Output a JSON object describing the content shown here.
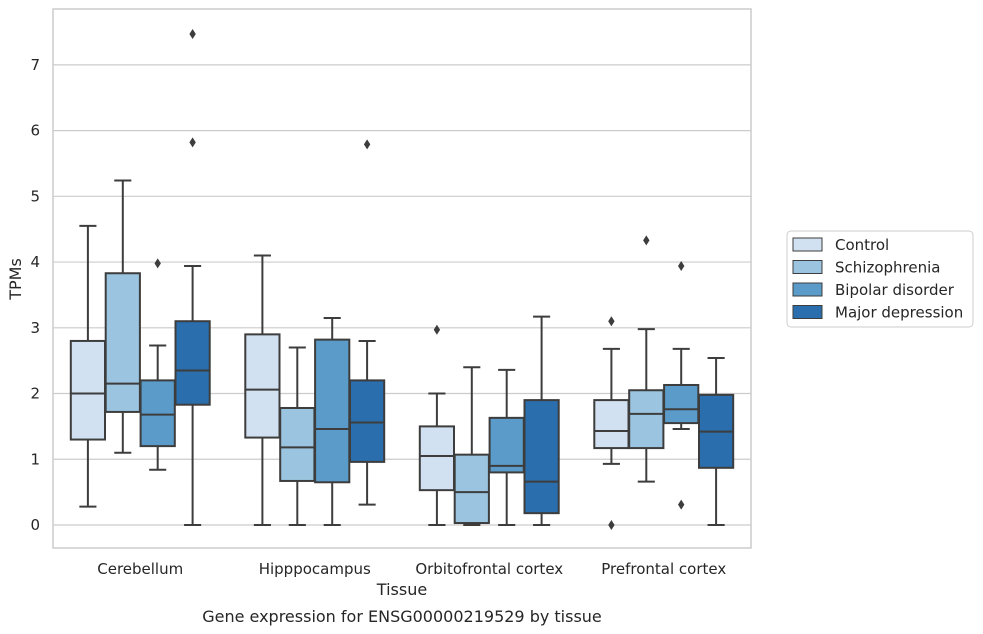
{
  "chart_data": {
    "type": "box",
    "xlabel": "Tissue",
    "ylabel": "TPMs",
    "caption": "Gene expression for ENSG00000219529 by tissue",
    "ylim": [
      -0.35,
      7.85
    ],
    "yticks": [
      0,
      1,
      2,
      3,
      4,
      5,
      6,
      7
    ],
    "grid": "horizontal",
    "legend_position": "right",
    "categories": [
      "Cerebellum",
      "Hipppocampus",
      "Orbitofrontal cortex",
      "Prefrontal cortex"
    ],
    "series": [
      {
        "name": "Control",
        "color": "#d2e1f1",
        "boxes": [
          {
            "whislo": 0.28,
            "q1": 1.3,
            "med": 2.0,
            "q3": 2.8,
            "whishi": 4.55,
            "fliers": []
          },
          {
            "whislo": 0.0,
            "q1": 1.33,
            "med": 2.06,
            "q3": 2.9,
            "whishi": 4.1,
            "fliers": []
          },
          {
            "whislo": 0.0,
            "q1": 0.53,
            "med": 1.05,
            "q3": 1.5,
            "whishi": 2.0,
            "fliers": [
              2.97
            ]
          },
          {
            "whislo": 0.93,
            "q1": 1.17,
            "med": 1.43,
            "q3": 1.9,
            "whishi": 2.68,
            "fliers": [
              3.1,
              0.0
            ]
          }
        ]
      },
      {
        "name": "Schizophrenia",
        "color": "#9ac4df",
        "boxes": [
          {
            "whislo": 1.1,
            "q1": 1.72,
            "med": 2.15,
            "q3": 3.83,
            "whishi": 5.24,
            "fliers": []
          },
          {
            "whislo": 0.0,
            "q1": 0.67,
            "med": 1.18,
            "q3": 1.78,
            "whishi": 2.7,
            "fliers": []
          },
          {
            "whislo": 0.0,
            "q1": 0.03,
            "med": 0.5,
            "q3": 1.07,
            "whishi": 2.4,
            "fliers": []
          },
          {
            "whislo": 0.66,
            "q1": 1.17,
            "med": 1.69,
            "q3": 2.05,
            "whishi": 2.98,
            "fliers": [
              4.33
            ]
          }
        ]
      },
      {
        "name": "Bipolar disorder",
        "color": "#5a9bc9",
        "boxes": [
          {
            "whislo": 0.84,
            "q1": 1.2,
            "med": 1.68,
            "q3": 2.2,
            "whishi": 2.73,
            "fliers": [
              3.98
            ]
          },
          {
            "whislo": 0.0,
            "q1": 0.65,
            "med": 1.46,
            "q3": 2.82,
            "whishi": 3.15,
            "fliers": []
          },
          {
            "whislo": 0.0,
            "q1": 0.8,
            "med": 0.9,
            "q3": 1.63,
            "whishi": 2.36,
            "fliers": []
          },
          {
            "whislo": 1.46,
            "q1": 1.55,
            "med": 1.76,
            "q3": 2.13,
            "whishi": 2.68,
            "fliers": [
              3.94,
              0.31
            ]
          }
        ]
      },
      {
        "name": "Major depression",
        "color": "#2a6ead",
        "boxes": [
          {
            "whislo": 0.0,
            "q1": 1.83,
            "med": 2.35,
            "q3": 3.1,
            "whishi": 3.94,
            "fliers": [
              7.47,
              5.82
            ]
          },
          {
            "whislo": 0.31,
            "q1": 0.96,
            "med": 1.56,
            "q3": 2.2,
            "whishi": 2.8,
            "fliers": [
              5.79
            ]
          },
          {
            "whislo": 0.0,
            "q1": 0.18,
            "med": 0.66,
            "q3": 1.9,
            "whishi": 3.17,
            "fliers": []
          },
          {
            "whislo": 0.0,
            "q1": 0.87,
            "med": 1.42,
            "q3": 1.98,
            "whishi": 2.54,
            "fliers": []
          }
        ]
      }
    ]
  }
}
